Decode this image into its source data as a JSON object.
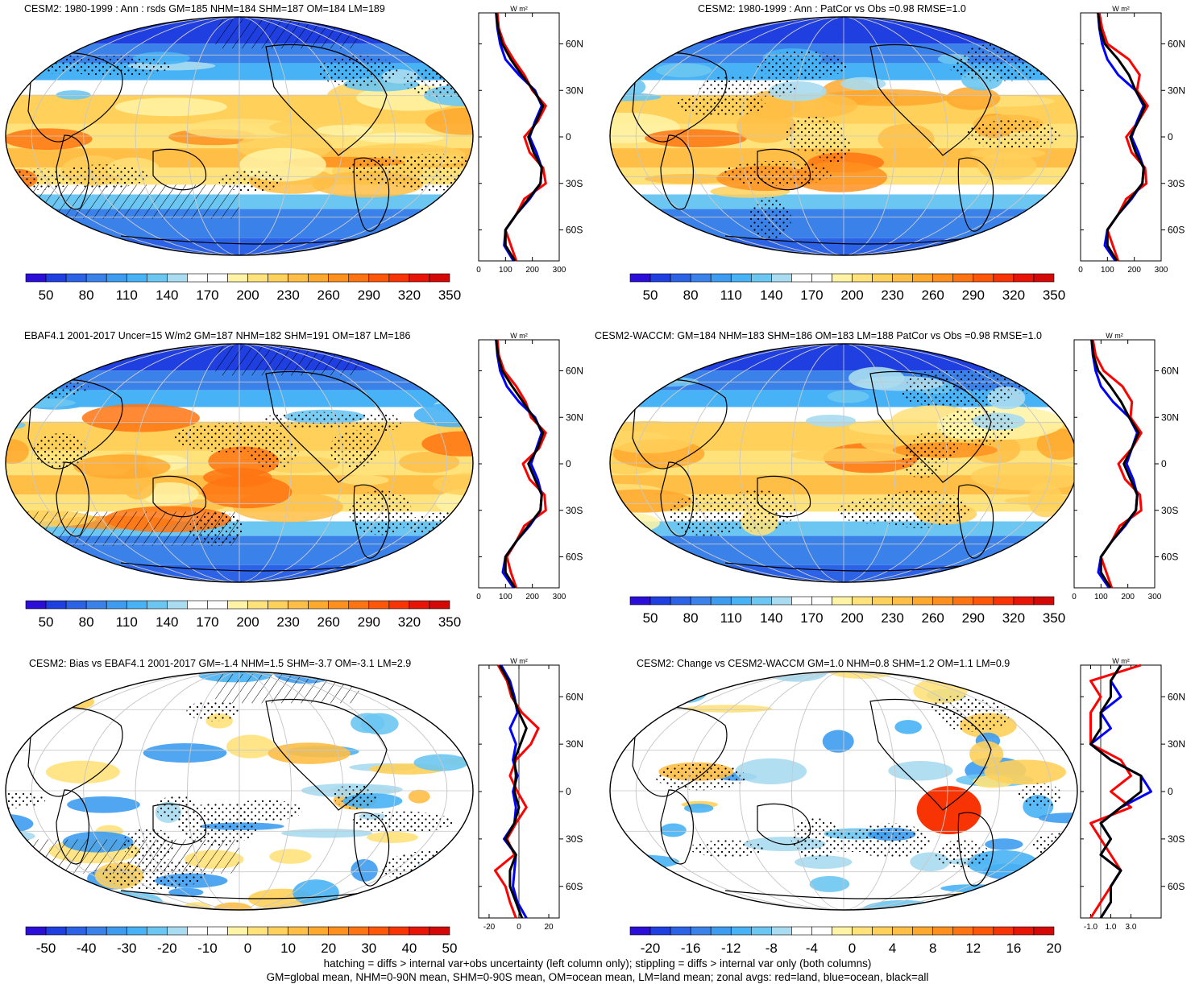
{
  "colors": {
    "land_line": "#000000",
    "zonal_land": "#ff0000",
    "zonal_ocean": "#0000ff",
    "zonal_all": "#000000",
    "grid": "#c8c8c8"
  },
  "footer": {
    "line1": "hatching = diffs > internal var+obs uncertainty (left column only); stippling = diffs > internal var only (both columns)",
    "line2": "GM=global mean, NHM=0-90N mean, SHM=0-90S mean, OM=ocean mean, LM=land mean; zonal avgs: red=land, blue=ocean, black=all"
  },
  "zonal_unit": "W m²",
  "lat_ticks": [
    "60N",
    "30N",
    "0",
    "30S",
    "60S"
  ],
  "chart_data": [
    {
      "id": "p1",
      "type": "heatmap",
      "title": "CESM2: 1980-1999 : Ann : rsds GM=185 NHM=184 SHM=187 OM=184 LM=189",
      "colorbar_labels": [
        "50",
        "80",
        "110",
        "140",
        "170",
        "200",
        "230",
        "260",
        "290",
        "320",
        "350"
      ],
      "colorbar_colors": [
        "#2b0fd9",
        "#1f3fe0",
        "#2c63e6",
        "#3a82ea",
        "#3d9cf0",
        "#47b2f5",
        "#6cc6f2",
        "#a9dcf0",
        "#ffffff",
        "#ffffff",
        "#fff3a6",
        "#ffe27a",
        "#ffd05a",
        "#ffbe45",
        "#ffa82e",
        "#ff901e",
        "#ff7412",
        "#ff5608",
        "#f83405",
        "#e81405",
        "#d50808"
      ],
      "zonal_xticks": [
        "0",
        "100",
        "200",
        "300"
      ],
      "zonal_xlim": [
        0,
        300
      ],
      "lat": [
        80,
        70,
        60,
        50,
        40,
        30,
        20,
        10,
        0,
        -10,
        -20,
        -30,
        -40,
        -50,
        -60,
        -70,
        -80
      ],
      "zonal_series": [
        {
          "name": "land",
          "values": [
            70,
            75,
            95,
            130,
            170,
            200,
            250,
            220,
            170,
            190,
            240,
            250,
            170,
            140,
            100,
            120,
            140
          ]
        },
        {
          "name": "ocean",
          "values": [
            65,
            70,
            80,
            100,
            150,
            210,
            235,
            210,
            190,
            215,
            235,
            230,
            190,
            140,
            100,
            95,
            130
          ]
        },
        {
          "name": "all",
          "values": [
            65,
            72,
            88,
            120,
            160,
            205,
            240,
            215,
            185,
            205,
            235,
            230,
            185,
            140,
            100,
            100,
            135
          ]
        }
      ]
    },
    {
      "id": "p2",
      "type": "heatmap",
      "title": "CESM2: 1980-1999 : Ann : PatCor vs Obs =0.98 RMSE=1.0",
      "colorbar_labels": [
        "50",
        "80",
        "110",
        "140",
        "170",
        "200",
        "230",
        "260",
        "290",
        "320",
        "350"
      ],
      "colorbar_colors": [
        "#2b0fd9",
        "#1f3fe0",
        "#2c63e6",
        "#3a82ea",
        "#3d9cf0",
        "#47b2f5",
        "#6cc6f2",
        "#a9dcf0",
        "#ffffff",
        "#ffffff",
        "#fff3a6",
        "#ffe27a",
        "#ffd05a",
        "#ffbe45",
        "#ffa82e",
        "#ff901e",
        "#ff7412",
        "#ff5608",
        "#f83405",
        "#e81405",
        "#d50808"
      ],
      "zonal_xticks": [
        "0",
        "100",
        "200",
        "300"
      ],
      "zonal_xlim": [
        0,
        300
      ],
      "lat": [
        80,
        70,
        60,
        50,
        40,
        30,
        20,
        10,
        0,
        -10,
        -20,
        -30,
        -40,
        -50,
        -60,
        -70,
        -80
      ],
      "zonal_series": [
        {
          "name": "land",
          "values": [
            70,
            80,
            100,
            180,
            220,
            210,
            250,
            215,
            170,
            190,
            240,
            245,
            170,
            140,
            100,
            120,
            140
          ]
        },
        {
          "name": "ocean",
          "values": [
            65,
            70,
            80,
            100,
            140,
            205,
            235,
            210,
            190,
            215,
            235,
            230,
            190,
            140,
            100,
            90,
            130
          ]
        },
        {
          "name": "all",
          "values": [
            65,
            72,
            90,
            140,
            180,
            205,
            240,
            215,
            185,
            205,
            235,
            230,
            185,
            140,
            100,
            100,
            135
          ]
        }
      ]
    },
    {
      "id": "p3",
      "type": "heatmap",
      "title": "EBAF4.1 2001-2017 Uncer=15 W/m2 GM=187 NHM=182 SHM=191 OM=187 LM=186",
      "colorbar_labels": [
        "50",
        "80",
        "110",
        "140",
        "170",
        "200",
        "230",
        "260",
        "290",
        "320",
        "350"
      ],
      "colorbar_colors": [
        "#2b0fd9",
        "#1f3fe0",
        "#2c63e6",
        "#3a82ea",
        "#3d9cf0",
        "#47b2f5",
        "#6cc6f2",
        "#a9dcf0",
        "#ffffff",
        "#ffffff",
        "#fff3a6",
        "#ffe27a",
        "#ffd05a",
        "#ffbe45",
        "#ffa82e",
        "#ff901e",
        "#ff7412",
        "#ff5608",
        "#f83405",
        "#e81405",
        "#d50808"
      ],
      "zonal_xticks": [
        "0",
        "100",
        "200",
        "300"
      ],
      "zonal_xlim": [
        0,
        300
      ],
      "lat": [
        80,
        70,
        60,
        50,
        40,
        30,
        20,
        10,
        0,
        -10,
        -20,
        -30,
        -40,
        -50,
        -60,
        -70,
        -80
      ],
      "zonal_series": [
        {
          "name": "land",
          "values": [
            70,
            75,
            95,
            140,
            175,
            195,
            250,
            225,
            165,
            190,
            245,
            250,
            170,
            140,
            105,
            120,
            140
          ]
        },
        {
          "name": "ocean",
          "values": [
            65,
            70,
            80,
            105,
            150,
            210,
            235,
            215,
            195,
            220,
            235,
            230,
            190,
            140,
            100,
            90,
            130
          ]
        },
        {
          "name": "all",
          "values": [
            65,
            72,
            88,
            125,
            165,
            205,
            240,
            220,
            185,
            210,
            235,
            230,
            185,
            140,
            100,
            100,
            135
          ]
        }
      ]
    },
    {
      "id": "p4",
      "type": "heatmap",
      "title": "CESM2-WACCM: GM=184 NHM=183 SHM=186 OM=183 LM=188 PatCor vs Obs =0.98 RMSE=1.0",
      "colorbar_labels": [
        "50",
        "80",
        "110",
        "140",
        "170",
        "200",
        "230",
        "260",
        "290",
        "320",
        "350"
      ],
      "colorbar_colors": [
        "#2b0fd9",
        "#1f3fe0",
        "#2c63e6",
        "#3a82ea",
        "#3d9cf0",
        "#47b2f5",
        "#6cc6f2",
        "#a9dcf0",
        "#ffffff",
        "#ffffff",
        "#fff3a6",
        "#ffe27a",
        "#ffd05a",
        "#ffbe45",
        "#ffa82e",
        "#ff901e",
        "#ff7412",
        "#ff5608",
        "#f83405",
        "#e81405",
        "#d50808"
      ],
      "zonal_xticks": [
        "0",
        "100",
        "200",
        "300"
      ],
      "zonal_xlim": [
        0,
        300
      ],
      "lat": [
        80,
        70,
        60,
        50,
        40,
        30,
        20,
        10,
        0,
        -10,
        -20,
        -30,
        -40,
        -50,
        -60,
        -70,
        -80
      ],
      "zonal_series": [
        {
          "name": "land",
          "values": [
            70,
            80,
            110,
            180,
            215,
            210,
            250,
            215,
            165,
            190,
            245,
            250,
            170,
            140,
            100,
            120,
            140
          ]
        },
        {
          "name": "ocean",
          "values": [
            65,
            70,
            80,
            100,
            145,
            205,
            235,
            215,
            195,
            220,
            235,
            230,
            190,
            140,
            100,
            90,
            130
          ]
        },
        {
          "name": "all",
          "values": [
            65,
            72,
            90,
            135,
            175,
            205,
            240,
            215,
            185,
            210,
            235,
            230,
            185,
            140,
            100,
            100,
            135
          ]
        }
      ]
    },
    {
      "id": "p5",
      "type": "heatmap",
      "title": "CESM2: Bias vs EBAF4.1 2001-2017 GM=-1.4 NHM=1.5 SHM=-3.7 OM=-3.1 LM=2.9",
      "colorbar_labels": [
        "-50",
        "-40",
        "-30",
        "-20",
        "-10",
        "0",
        "10",
        "20",
        "30",
        "40",
        "50"
      ],
      "colorbar_colors": [
        "#2b0fd9",
        "#1f3fe0",
        "#2c63e6",
        "#3a82ea",
        "#3d9cf0",
        "#47b2f5",
        "#6cc6f2",
        "#a9dcf0",
        "#ffffff",
        "#ffffff",
        "#fff3a6",
        "#ffe27a",
        "#ffd05a",
        "#ffbe45",
        "#ffa82e",
        "#ff901e",
        "#ff7412",
        "#ff5608",
        "#f83405",
        "#e81405",
        "#d50808"
      ],
      "zonal_xticks": [
        "-20",
        "0",
        "20"
      ],
      "zonal_xlim": [
        -27,
        27
      ],
      "lat": [
        80,
        70,
        60,
        50,
        40,
        30,
        20,
        10,
        0,
        -10,
        -20,
        -30,
        -40,
        -50,
        -60,
        -70,
        -80
      ],
      "zonal_series": [
        {
          "name": "land",
          "values": [
            -14,
            -8,
            -5,
            2,
            13,
            8,
            -2,
            -6,
            -1,
            5,
            -2,
            -8,
            -3,
            -16,
            -9,
            -6,
            -2
          ]
        },
        {
          "name": "ocean",
          "values": [
            -12,
            -6,
            -3,
            -1,
            -6,
            -2,
            -4,
            -1,
            -4,
            -2,
            -3,
            -10,
            -2,
            -3,
            -4,
            -1,
            5
          ]
        },
        {
          "name": "all",
          "values": [
            -13,
            -7,
            -4,
            0,
            5,
            1,
            -3,
            -2,
            -3,
            0,
            -3,
            -9,
            -2,
            -6,
            -6,
            -2,
            2
          ]
        }
      ]
    },
    {
      "id": "p6",
      "type": "heatmap",
      "title": "CESM2: Change vs CESM2-WACCM GM=1.0 NHM=0.8 SHM=1.2 OM=1.1 LM=0.9",
      "colorbar_labels": [
        "-20",
        "-16",
        "-12",
        "-8",
        "-4",
        "0",
        "4",
        "8",
        "12",
        "16",
        "20"
      ],
      "colorbar_colors": [
        "#2b0fd9",
        "#1f3fe0",
        "#2c63e6",
        "#3a82ea",
        "#3d9cf0",
        "#47b2f5",
        "#6cc6f2",
        "#a9dcf0",
        "#ffffff",
        "#ffffff",
        "#fff3a6",
        "#ffe27a",
        "#ffd05a",
        "#ffbe45",
        "#ffa82e",
        "#ff901e",
        "#ff7412",
        "#ff5608",
        "#f83405",
        "#e81405",
        "#d50808"
      ],
      "zonal_xticks": [
        "-1.0",
        "1.0",
        "3.0"
      ],
      "zonal_xlim": [
        -2,
        6
      ],
      "lat": [
        80,
        70,
        60,
        50,
        40,
        30,
        20,
        10,
        0,
        -10,
        -20,
        -30,
        -40,
        -50,
        -60,
        -70,
        -80
      ],
      "zonal_series": [
        {
          "name": "land",
          "values": [
            4,
            -1,
            0,
            -1,
            -1,
            -1,
            2,
            3,
            1,
            3,
            -1,
            0,
            1,
            2,
            1,
            0,
            -1
          ]
        },
        {
          "name": "ocean",
          "values": [
            2,
            1,
            2,
            0,
            1,
            -1,
            1,
            4,
            5,
            2,
            0,
            1,
            0,
            2,
            1,
            1,
            0
          ]
        },
        {
          "name": "all",
          "values": [
            2,
            1,
            1,
            0,
            0,
            -1,
            1,
            4,
            4,
            2,
            0,
            1,
            0,
            2,
            1,
            1,
            0
          ]
        }
      ]
    }
  ]
}
